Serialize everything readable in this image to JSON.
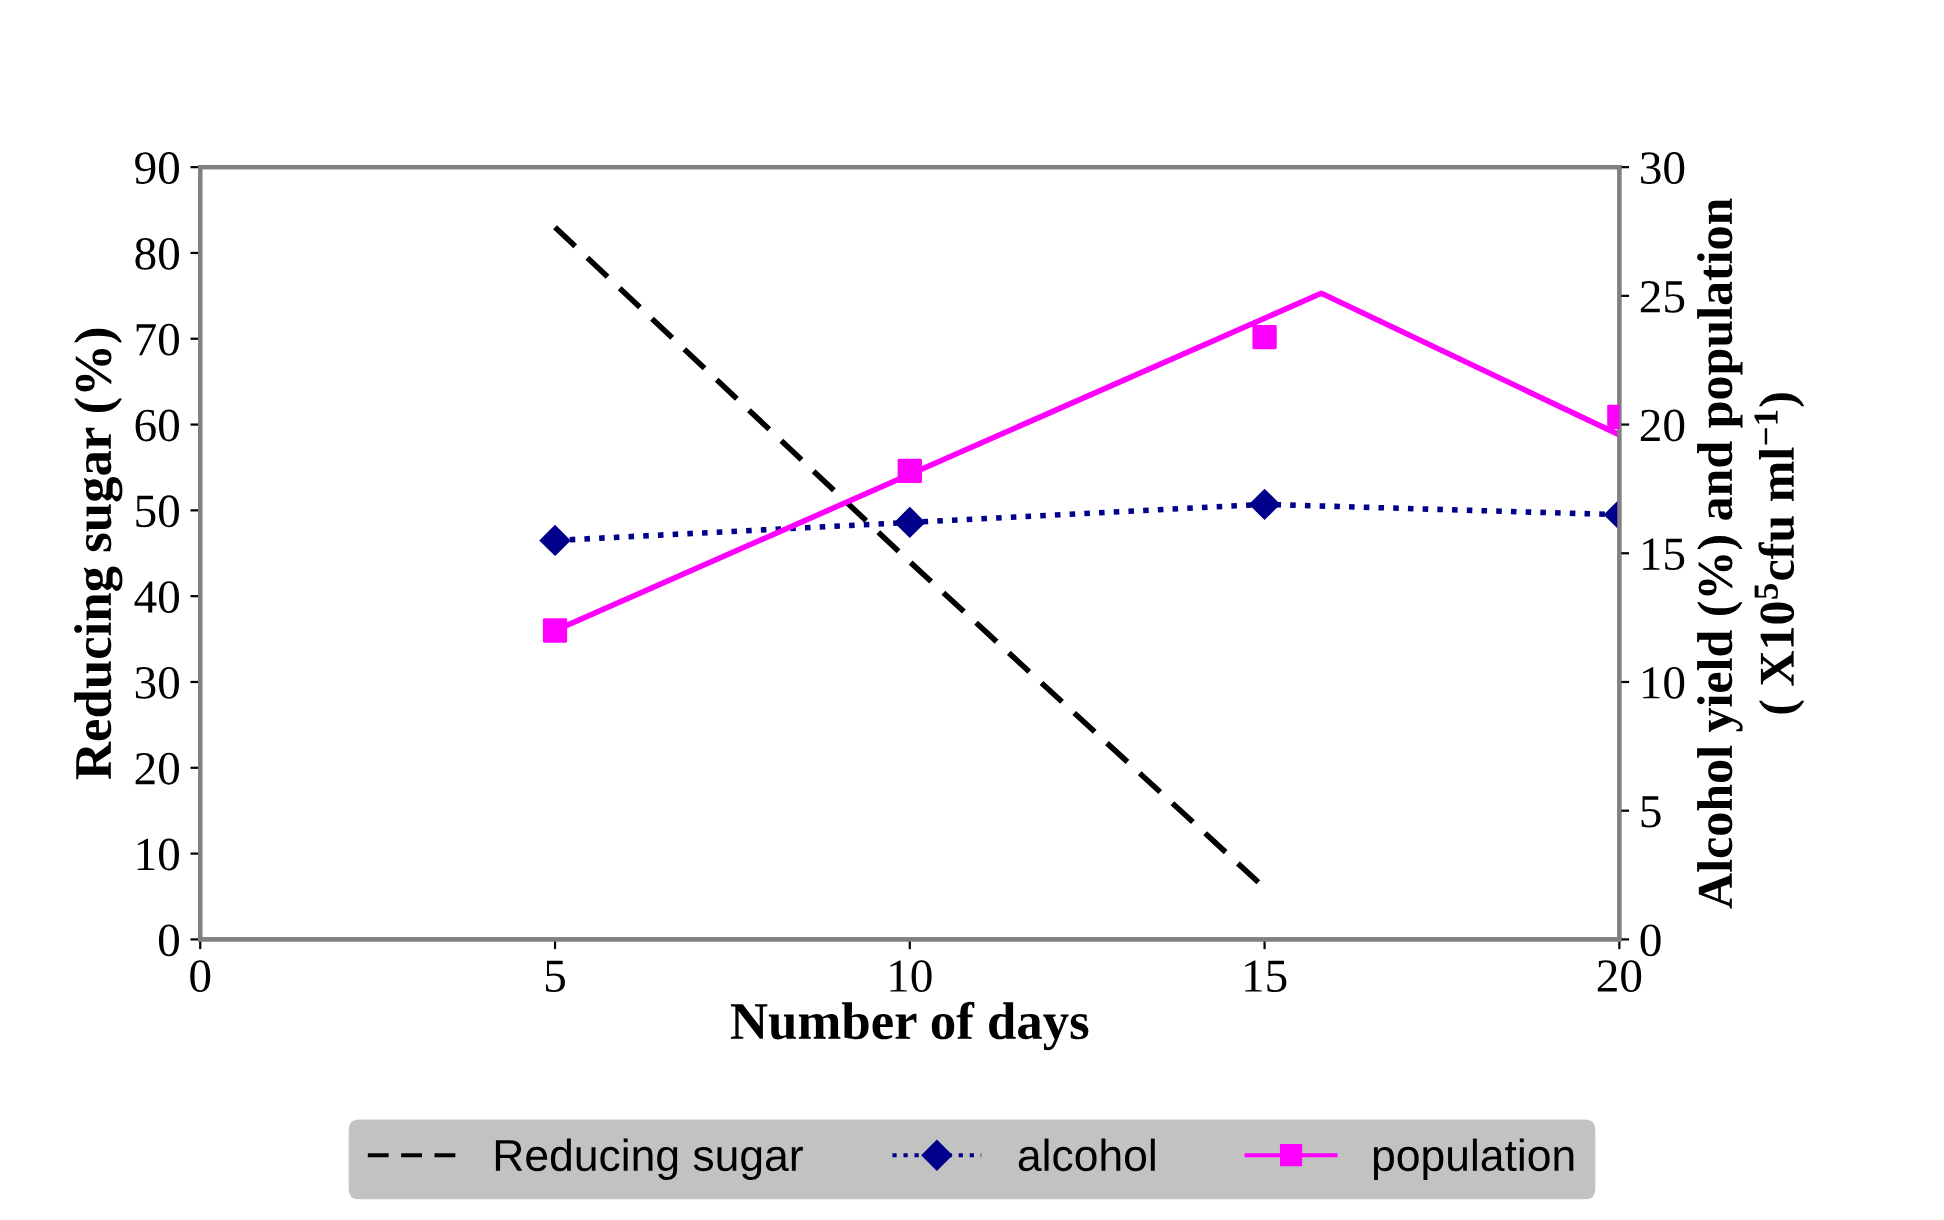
{
  "chart_data": {
    "type": "line",
    "xlabel": "Number of days",
    "ylabel": "Reducing sugar (%)",
    "y2label": "Alcohol yield (%) and population\n( X10$^{5}$cfu ml$^{−1}$)",
    "xlim": [
      0,
      20
    ],
    "xticks": [
      0,
      5,
      10,
      15,
      20
    ],
    "ylim": [
      0,
      90
    ],
    "yticks": [
      0,
      10,
      20,
      30,
      40,
      50,
      60,
      70,
      80,
      90
    ],
    "y2lim": [
      0,
      30
    ],
    "y2ticks": [
      0,
      5,
      10,
      15,
      20,
      25,
      30
    ],
    "legend": "bottom",
    "series": [
      {
        "name": "Reducing sugar",
        "color": "#000000",
        "x": [
          5,
          10,
          15
        ],
        "values": [
          83,
          44,
          6
        ],
        "line_style": "dashed",
        "marker": "none",
        "axis": "y"
      },
      {
        "name": "alcohol",
        "color": "#00008b",
        "x": [
          5,
          10,
          15,
          20
        ],
        "values": [
          15.5,
          16.2,
          16.9,
          16.5
        ],
        "line_style": "dotted",
        "marker": "diamond",
        "axis": "y2"
      },
      {
        "name": "population",
        "color": "#ff00ff",
        "type": "scatter",
        "x": [
          5,
          10,
          15,
          20
        ],
        "values": [
          12.0,
          18.2,
          23.4,
          20.3
        ],
        "marker": "square",
        "axis": "y2"
      },
      {
        "color": "#ff00ff",
        "x": [
          5,
          15.8,
          20
        ],
        "values": [
          12.0,
          25.1,
          19.6
        ],
        "line_style": "solid",
        "marker": "none",
        "axis": "y2"
      }
    ]
  }
}
